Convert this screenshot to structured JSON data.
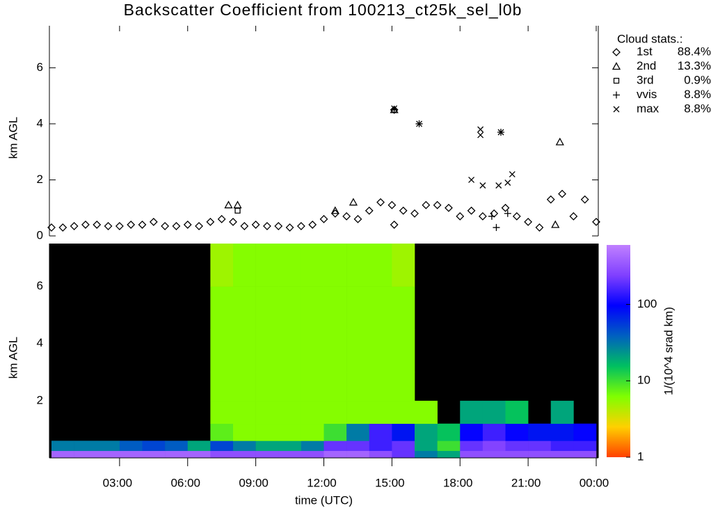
{
  "chart_data": [
    {
      "type": "scatter",
      "title": "Backscatter Coefficient from 100213_ct25k_sel_l0b",
      "ylabel": "km AGL",
      "xlim": [
        0,
        24
      ],
      "ylim": [
        0,
        7.5
      ],
      "yticks": [
        0,
        2,
        4,
        6
      ],
      "legend_title": "Cloud stats.:",
      "legend": "outside right",
      "series": [
        {
          "name": "1st",
          "stat": "88.4%",
          "marker": "diamond",
          "color": "#000000",
          "x": [
            0,
            0.5,
            1,
            1.5,
            2,
            2.5,
            3,
            3.5,
            4,
            4.5,
            5,
            5.5,
            6,
            6.5,
            7,
            7.5,
            8,
            8.5,
            9,
            9.5,
            10,
            10.5,
            11,
            11.5,
            12,
            12.5,
            13,
            13.5,
            14,
            14.5,
            15,
            15.1,
            15.1,
            15.5,
            16,
            16.5,
            17,
            17.5,
            18,
            18.5,
            19,
            19.5,
            20,
            20.5,
            21,
            21.5,
            22,
            22.5,
            23,
            23.5,
            24
          ],
          "y": [
            0.3,
            0.3,
            0.35,
            0.4,
            0.4,
            0.35,
            0.35,
            0.4,
            0.4,
            0.5,
            0.35,
            0.35,
            0.4,
            0.35,
            0.5,
            0.6,
            0.5,
            0.35,
            0.4,
            0.35,
            0.35,
            0.3,
            0.35,
            0.4,
            0.6,
            0.8,
            0.7,
            0.6,
            0.9,
            1.2,
            1.1,
            0.4,
            4.5,
            0.9,
            0.8,
            1.1,
            1.1,
            1.0,
            0.7,
            0.9,
            0.7,
            0.8,
            1.0,
            0.7,
            0.5,
            0.3,
            1.3,
            1.5,
            0.7,
            1.3,
            0.5
          ]
        },
        {
          "name": "2nd",
          "stat": "13.3%",
          "marker": "triangle",
          "color": "#000000",
          "x": [
            7.8,
            8.2,
            12.5,
            13.3,
            15.1,
            22.2,
            22.4
          ],
          "y": [
            1.1,
            1.1,
            0.9,
            1.2,
            4.5,
            0.4,
            3.35
          ]
        },
        {
          "name": "3rd",
          "stat": "0.9%",
          "marker": "square",
          "color": "#000000",
          "x": [
            8.2
          ],
          "y": [
            0.9
          ]
        },
        {
          "name": "vvis",
          "stat": "8.8%",
          "marker": "plus",
          "color": "#000000",
          "x": [
            15.1,
            16.2,
            19.4,
            19.6,
            19.8,
            20.1
          ],
          "y": [
            4.5,
            4.0,
            0.7,
            0.3,
            3.7,
            0.8
          ]
        },
        {
          "name": "max",
          "stat": "8.8%",
          "marker": "cross",
          "color": "#000000",
          "x": [
            15.1,
            16.2,
            18.5,
            18.9,
            18.9,
            19,
            19.7,
            19.8,
            20.1,
            20.3
          ],
          "y": [
            4.55,
            4.0,
            2.0,
            3.8,
            3.6,
            1.8,
            1.8,
            3.7,
            1.9,
            2.2
          ]
        }
      ]
    },
    {
      "type": "heatmap",
      "ylabel": "km AGL",
      "xlabel": "time (UTC)",
      "xlim": [
        0,
        24
      ],
      "ylim": [
        0,
        7.5
      ],
      "yticks": [
        2,
        4,
        6
      ],
      "xticks": [
        {
          "value": 3,
          "label": "03:00"
        },
        {
          "value": 6,
          "label": "06:00"
        },
        {
          "value": 9,
          "label": "09:00"
        },
        {
          "value": 12,
          "label": "12:00"
        },
        {
          "value": 15,
          "label": "15:00"
        },
        {
          "value": 18,
          "label": "18:00"
        },
        {
          "value": 21,
          "label": "21:00"
        },
        {
          "value": 24,
          "label": "00:00"
        }
      ],
      "x_edges": [
        0,
        1,
        2,
        3,
        4,
        5,
        6,
        7,
        8,
        9,
        10,
        11,
        12,
        13,
        14,
        15,
        16,
        17,
        18,
        19,
        20,
        21,
        22,
        23,
        24
      ],
      "y_edges": [
        0,
        0.25,
        0.6,
        1.2,
        2,
        3,
        4.5,
        6,
        7.5
      ],
      "background": "#000000",
      "values": [
        [
          400,
          400,
          400,
          400,
          400,
          400,
          400,
          300,
          300,
          300,
          300,
          300,
          400,
          400,
          300,
          200,
          30,
          20,
          300,
          300,
          300,
          300,
          300,
          300
        ],
        [
          30,
          30,
          30,
          40,
          50,
          40,
          20,
          50,
          30,
          20,
          20,
          30,
          200,
          200,
          150,
          200,
          20,
          10,
          200,
          250,
          200,
          200,
          150,
          150
        ],
        [
          null,
          null,
          null,
          null,
          null,
          null,
          null,
          8,
          6,
          6,
          6,
          6,
          10,
          30,
          150,
          80,
          20,
          15,
          100,
          150,
          100,
          80,
          80,
          100
        ],
        [
          null,
          null,
          null,
          null,
          null,
          null,
          null,
          6,
          6,
          6,
          6,
          6,
          6,
          6,
          6,
          6,
          6,
          null,
          20,
          20,
          15,
          null,
          20,
          null
        ],
        [
          null,
          null,
          null,
          null,
          null,
          null,
          null,
          6,
          6,
          6,
          6,
          6,
          6,
          6,
          6,
          6,
          null,
          null,
          null,
          null,
          null,
          null,
          null,
          null
        ],
        [
          null,
          null,
          null,
          null,
          null,
          null,
          null,
          6,
          6,
          6,
          6,
          6,
          6,
          6,
          6,
          6,
          null,
          null,
          null,
          null,
          null,
          null,
          null,
          null
        ],
        [
          null,
          null,
          null,
          null,
          null,
          null,
          null,
          6,
          6,
          6,
          6,
          6,
          6,
          6,
          6,
          6,
          null,
          null,
          null,
          null,
          null,
          null,
          null,
          null
        ],
        [
          null,
          null,
          null,
          null,
          null,
          null,
          null,
          5,
          6,
          6,
          6,
          6,
          6,
          6,
          6,
          5,
          null,
          null,
          null,
          null,
          null,
          null,
          null,
          null
        ]
      ],
      "colorbar": {
        "label": "1/(10^4 srad km)",
        "scale": "log",
        "lim": [
          1,
          600
        ],
        "ticks": [
          1,
          10,
          100
        ],
        "colormap": [
          "#ff4000",
          "#ffd000",
          "#80ff00",
          "#00c060",
          "#0060c0",
          "#0000ff",
          "#8040ff",
          "#c080ff"
        ]
      }
    }
  ]
}
